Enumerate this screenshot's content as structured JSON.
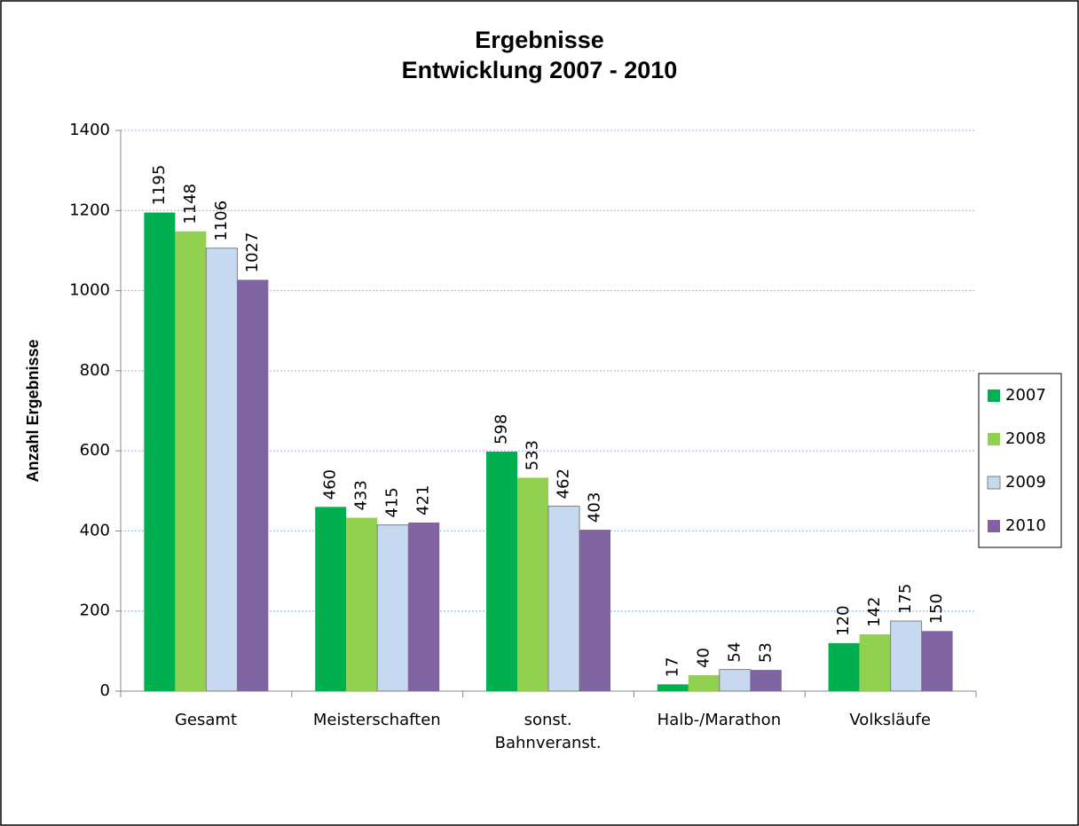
{
  "chart_data": {
    "type": "bar",
    "title": "Ergebnisse",
    "subtitle": "Entwicklung 2007 - 2010",
    "y_label": "Anzahl Ergebnisse",
    "categories": [
      "Gesamt",
      "Meisterschaften",
      "sonst.\nBahnveranst.",
      "Halb-/Marathon",
      "Volksläufe"
    ],
    "series": [
      {
        "name": "2007",
        "color": "#00b050",
        "values": [
          1195,
          460,
          598,
          17,
          120
        ]
      },
      {
        "name": "2008",
        "color": "#92d050",
        "values": [
          1148,
          433,
          533,
          40,
          142
        ]
      },
      {
        "name": "2009",
        "color": "#c6d9f1",
        "values": [
          1106,
          415,
          462,
          54,
          175
        ]
      },
      {
        "name": "2010",
        "color": "#8064a2",
        "values": [
          1027,
          421,
          403,
          53,
          150
        ]
      }
    ],
    "ylim": [
      0,
      1400
    ],
    "yticks": [
      0,
      200,
      400,
      600,
      800,
      1000,
      1200,
      1400
    ],
    "grid": true,
    "legend": "right"
  }
}
